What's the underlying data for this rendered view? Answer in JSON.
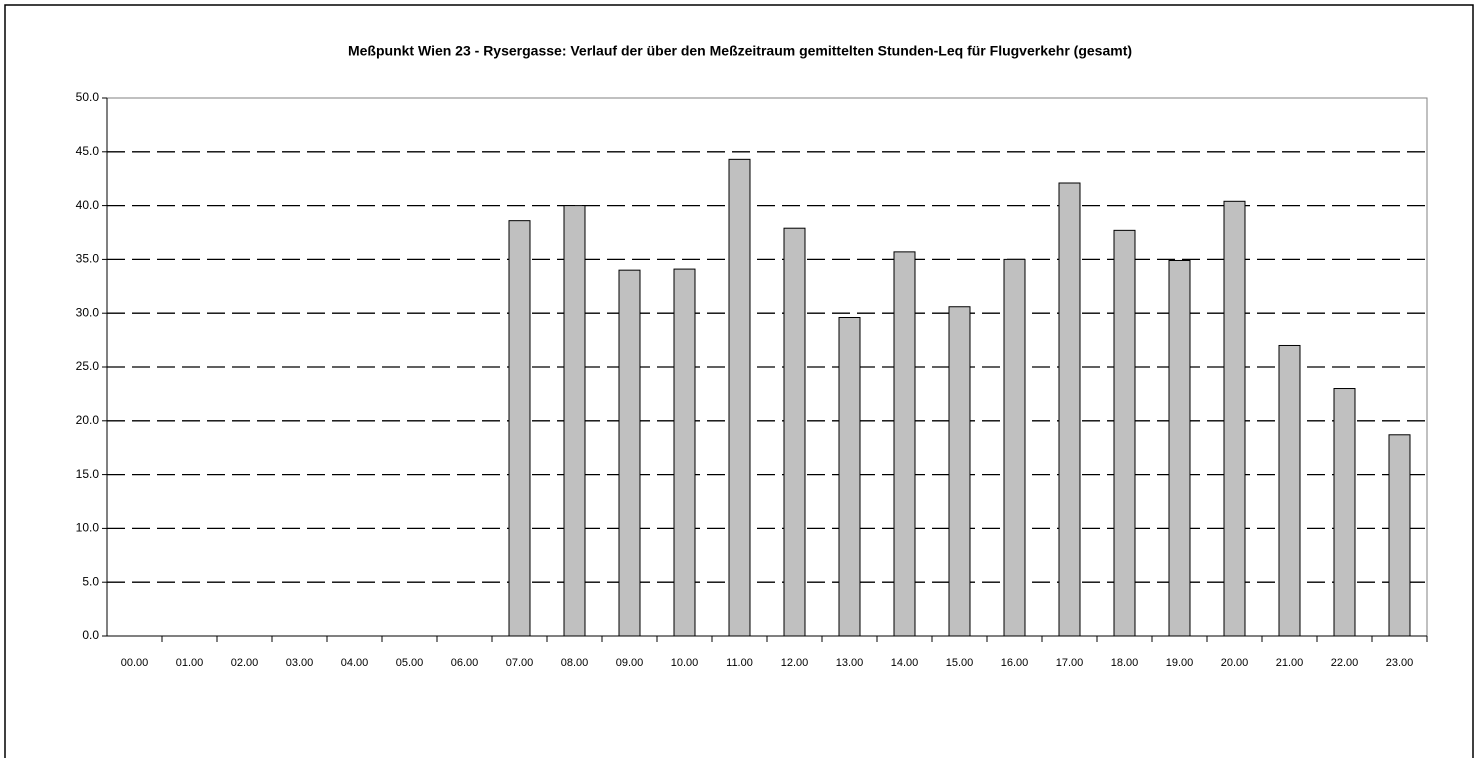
{
  "chart_data": {
    "type": "bar",
    "title": "Meßpunkt Wien 23 - Rysergasse: Verlauf der über den Meßzeitraum gemittelten Stunden-Leq für Flugverkehr (gesamt)",
    "categories": [
      "00.00",
      "01.00",
      "02.00",
      "03.00",
      "04.00",
      "05.00",
      "06.00",
      "07.00",
      "08.00",
      "09.00",
      "10.00",
      "11.00",
      "12.00",
      "13.00",
      "14.00",
      "15.00",
      "16.00",
      "17.00",
      "18.00",
      "19.00",
      "20.00",
      "21.00",
      "22.00",
      "23.00"
    ],
    "values": [
      null,
      null,
      null,
      null,
      null,
      null,
      null,
      38.6,
      40.0,
      34.0,
      34.1,
      44.3,
      37.9,
      29.6,
      35.7,
      30.6,
      35.0,
      42.1,
      37.7,
      34.9,
      40.4,
      27.0,
      23.0,
      18.7
    ],
    "color": "#c0c0c0",
    "ylim": [
      0,
      50
    ],
    "yticks": [
      {
        "value": 0,
        "label": "0.0"
      },
      {
        "value": 5,
        "label": "5.0"
      },
      {
        "value": 10,
        "label": "10.0"
      },
      {
        "value": 15,
        "label": "15.0"
      },
      {
        "value": 20,
        "label": "20.0"
      },
      {
        "value": 25,
        "label": "25.0"
      },
      {
        "value": 30,
        "label": "30.0"
      },
      {
        "value": 35,
        "label": "35.0"
      },
      {
        "value": 40,
        "label": "40.0"
      },
      {
        "value": 45,
        "label": "45.0"
      },
      {
        "value": 50,
        "label": "50.0"
      }
    ],
    "grid": true
  }
}
